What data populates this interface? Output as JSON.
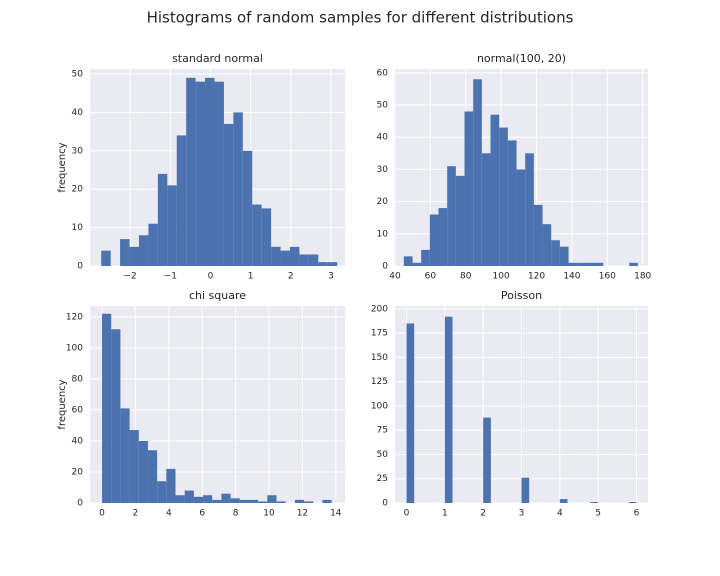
{
  "title": "Histograms of random samples for different distributions",
  "chart_data": [
    {
      "type": "histogram",
      "title": "standard normal",
      "ylabel": "frequency",
      "color": "#4c72b0",
      "grid": true,
      "bins": [
        -2.72,
        -2.485,
        -2.25,
        -2.015,
        -1.78,
        -1.545,
        -1.31,
        -1.075,
        -0.84,
        -0.605,
        -0.37,
        -0.135,
        0.1,
        0.335,
        0.57,
        0.805,
        1.04,
        1.275,
        1.51,
        1.745,
        1.98,
        2.215,
        2.45,
        2.685,
        2.92,
        3.155
      ],
      "values": [
        4,
        0,
        7,
        5,
        8,
        11,
        24,
        21,
        34,
        49,
        48,
        49,
        48,
        37,
        40,
        30,
        16,
        15,
        5,
        4,
        5,
        3,
        3,
        1,
        1
      ],
      "xlim": [
        -3.0,
        3.35
      ],
      "ylim": [
        0,
        51.3
      ],
      "xticks": [
        {
          "value": -2,
          "label": "−2"
        },
        {
          "value": -1,
          "label": "−1"
        },
        0,
        1,
        2,
        3
      ],
      "yticks": [
        0,
        10,
        20,
        30,
        40,
        50
      ]
    },
    {
      "type": "histogram",
      "title": "normal(100, 20)",
      "color": "#4c72b0",
      "grid": true,
      "bins": [
        45,
        49.9,
        54.8,
        59.7,
        64.6,
        69.5,
        74.4,
        79.3,
        84.2,
        89.1,
        94,
        98.9,
        103.8,
        108.7,
        113.6,
        118.5,
        123.4,
        128.3,
        133.2,
        138.1,
        143,
        147.9,
        152.8,
        157.7,
        162.6,
        167.5,
        172.4,
        177.3
      ],
      "values": [
        3,
        1,
        5,
        16,
        18,
        31,
        28,
        48,
        58,
        35,
        47,
        43,
        39,
        30,
        35,
        19,
        13,
        8,
        6,
        1,
        1,
        1,
        1,
        0,
        0,
        0,
        1
      ],
      "xlim": [
        40,
        183
      ],
      "ylim": [
        0,
        61.2
      ],
      "xticks": [
        40,
        60,
        80,
        100,
        120,
        140,
        160,
        180
      ],
      "yticks": [
        0,
        10,
        20,
        30,
        40,
        50,
        60
      ]
    },
    {
      "type": "histogram",
      "title": "chi square",
      "ylabel": "frequency",
      "color": "#4c72b0",
      "grid": true,
      "bins": [
        0,
        0.55,
        1.1,
        1.65,
        2.2,
        2.75,
        3.3,
        3.85,
        4.4,
        4.95,
        5.5,
        6.05,
        6.6,
        7.15,
        7.7,
        8.25,
        8.8,
        9.35,
        9.9,
        10.45,
        11,
        11.55,
        12.1,
        12.65,
        13.2,
        13.75
      ],
      "values": [
        122,
        112,
        61,
        47,
        40,
        34,
        14,
        22,
        5,
        8,
        4,
        5,
        2,
        6,
        3,
        2,
        2,
        1,
        5,
        1,
        0,
        2,
        1,
        0,
        2
      ],
      "xlim": [
        -0.72,
        14.55
      ],
      "ylim": [
        0,
        127
      ],
      "xticks": [
        0,
        2,
        4,
        6,
        8,
        10,
        12,
        14
      ],
      "yticks": [
        0,
        20,
        40,
        60,
        80,
        100,
        120
      ]
    },
    {
      "type": "histogram",
      "title": "Poisson",
      "color": "#4c72b0",
      "grid": true,
      "bins": [
        0,
        0.2,
        0.4,
        0.6,
        0.8,
        1,
        1.2,
        1.4,
        1.6,
        1.8,
        2,
        2.2,
        2.4,
        2.6,
        2.8,
        3,
        3.2,
        3.4,
        3.6,
        3.8,
        4,
        4.2,
        4.4,
        4.6,
        4.8,
        5,
        5.2,
        5.4,
        5.6,
        5.8,
        6
      ],
      "values": [
        185,
        0,
        0,
        0,
        0,
        192,
        0,
        0,
        0,
        0,
        88,
        0,
        0,
        0,
        0,
        26,
        0,
        0,
        0,
        0,
        4,
        0,
        0,
        0,
        1,
        0,
        0,
        0,
        0,
        1
      ],
      "xlim": [
        -0.3,
        6.3
      ],
      "ylim": [
        0,
        203
      ],
      "xticks": [
        0,
        1,
        2,
        3,
        4,
        5,
        6
      ],
      "yticks": [
        0,
        25,
        50,
        75,
        100,
        125,
        150,
        175,
        200
      ]
    }
  ]
}
